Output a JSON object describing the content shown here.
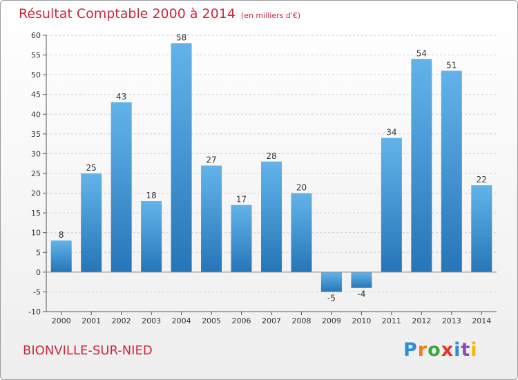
{
  "header": {
    "title": "Résultat Comptable 2000 à 2014",
    "subtitle": "(en milliers d'€)"
  },
  "footer": {
    "commune": "BIONVILLE-SUR-NIED",
    "brand": {
      "letters": [
        "P",
        "r",
        "o",
        "x",
        "i",
        "t",
        "i"
      ],
      "colors": [
        "#2a8fd9",
        "#f07c1c",
        "#3aa83e",
        "#e2342b",
        "#2a8fd9",
        "#8b4ab8",
        "#f5b800"
      ]
    }
  },
  "colors": {
    "bar_top": "#63b3ea",
    "bar_bottom": "#2676b8",
    "grid": "#cfcfcf",
    "axis": "#555555",
    "text_accent": "#c9283e"
  },
  "chart_data": {
    "type": "bar",
    "title": "Résultat Comptable 2000 à 2014",
    "subtitle": "(en milliers d'€)",
    "categories": [
      "2000",
      "2001",
      "2002",
      "2003",
      "2004",
      "2005",
      "2006",
      "2007",
      "2008",
      "2009",
      "2010",
      "2011",
      "2012",
      "2013",
      "2014"
    ],
    "values": [
      8,
      25,
      43,
      18,
      58,
      27,
      17,
      28,
      20,
      -5,
      -4,
      34,
      54,
      51,
      22
    ],
    "xlabel": "",
    "ylabel": "",
    "ylim": [
      -10,
      60
    ],
    "yticks": [
      -10,
      -5,
      0,
      5,
      10,
      15,
      20,
      25,
      30,
      35,
      40,
      45,
      50,
      55,
      60
    ],
    "grid": true,
    "data_labels": true
  }
}
